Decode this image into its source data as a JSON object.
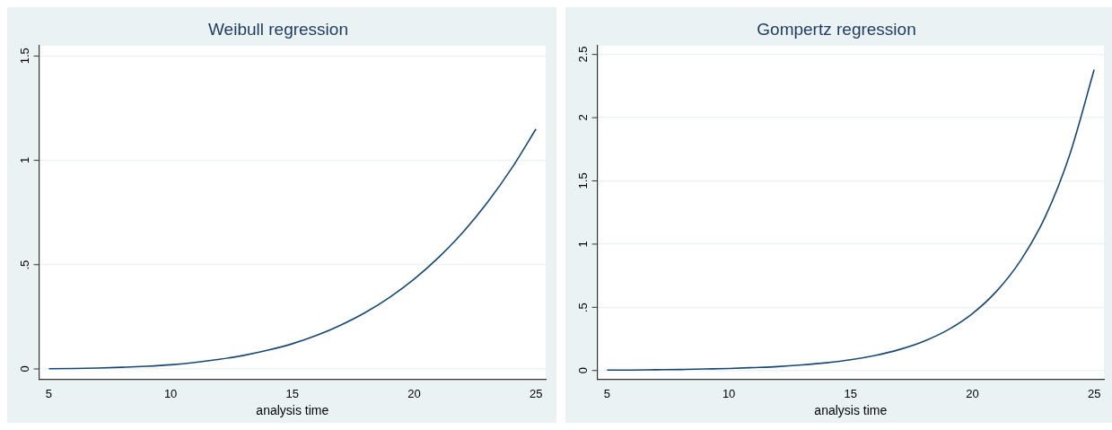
{
  "chart_data": [
    {
      "type": "line",
      "title": "Weibull regression",
      "xlabel": "analysis time",
      "x": [
        5,
        6,
        7,
        8,
        9,
        10,
        11,
        12,
        13,
        14,
        15,
        16,
        17,
        18,
        19,
        20,
        21,
        22,
        23,
        24,
        25
      ],
      "series": [
        {
          "color": "#1a476f",
          "values": [
            0.001,
            0.002,
            0.004,
            0.008,
            0.013,
            0.02,
            0.031,
            0.046,
            0.065,
            0.09,
            0.121,
            0.161,
            0.211,
            0.271,
            0.344,
            0.431,
            0.534,
            0.655,
            0.797,
            0.961,
            1.15
          ]
        }
      ],
      "xlim": [
        4.6,
        25.4
      ],
      "xticks": [
        5,
        10,
        15,
        20,
        25
      ],
      "ylim": [
        -0.05,
        1.55
      ],
      "yticks": [
        0,
        {
          "value": 0.5,
          "label": ".5"
        },
        1,
        1.5
      ],
      "grid": "y",
      "legend": false,
      "marker": "none",
      "line_style": "solid"
    },
    {
      "type": "line",
      "title": "Gompertz regression",
      "xlabel": "analysis time",
      "x": [
        5,
        6,
        7,
        8,
        9,
        10,
        11,
        12,
        13,
        14,
        15,
        16,
        17,
        18,
        19,
        20,
        21,
        22,
        23,
        24,
        25
      ],
      "series": [
        {
          "color": "#1a476f",
          "values": [
            0.003,
            0.004,
            0.006,
            0.008,
            0.012,
            0.016,
            0.023,
            0.031,
            0.044,
            0.061,
            0.085,
            0.119,
            0.166,
            0.231,
            0.322,
            0.45,
            0.629,
            0.876,
            1.22,
            1.71,
            2.38
          ]
        }
      ],
      "xlim": [
        4.6,
        25.4
      ],
      "xticks": [
        5,
        10,
        15,
        20,
        25
      ],
      "ylim": [
        -0.07,
        2.57
      ],
      "yticks": [
        0,
        {
          "value": 0.5,
          "label": ".5"
        },
        1,
        1.5,
        2,
        2.5
      ],
      "grid": "y",
      "legend": false,
      "marker": "none",
      "line_style": "solid"
    }
  ]
}
